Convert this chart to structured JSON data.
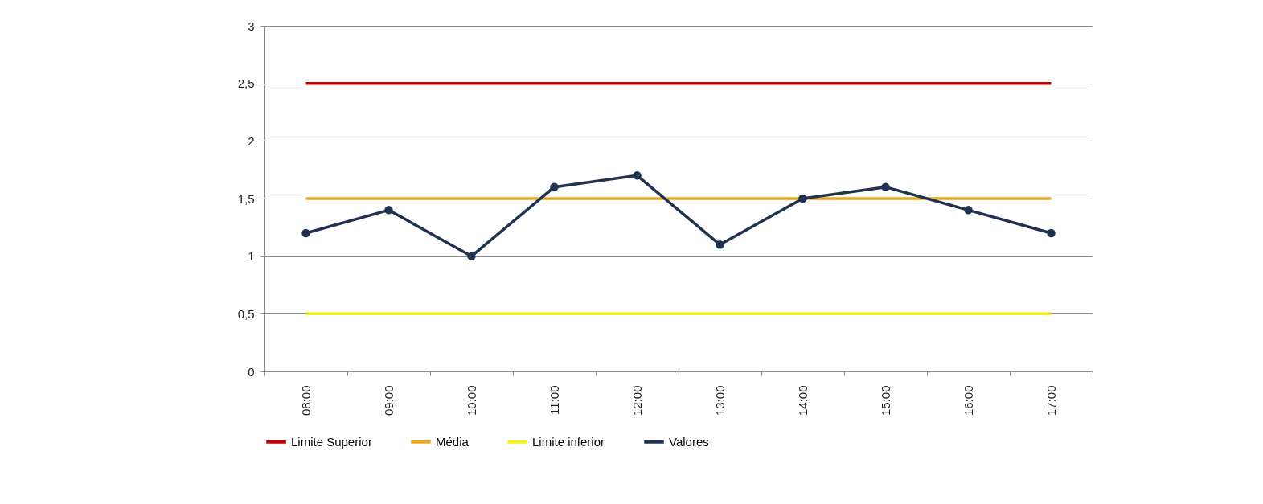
{
  "chart_data": {
    "type": "line",
    "categories": [
      "08:00",
      "09:00",
      "10:00",
      "11:00",
      "12:00",
      "13:00",
      "14:00",
      "15:00",
      "16:00",
      "17:00"
    ],
    "ylim": [
      0,
      3
    ],
    "yticks": [
      0,
      {
        "value": 0.5,
        "label": "0,5"
      },
      1,
      {
        "value": 1.5,
        "label": "1,5"
      },
      2,
      {
        "value": 2.5,
        "label": "2,5"
      },
      3
    ],
    "grid": "y",
    "legend": "bottom",
    "line_style": "solid",
    "series": [
      {
        "name": "Limite Superior",
        "color": "#c00000",
        "marker": "none",
        "values": [
          2.5,
          2.5,
          2.5,
          2.5,
          2.5,
          2.5,
          2.5,
          2.5,
          2.5,
          2.5
        ]
      },
      {
        "name": "Média",
        "color": "#e8a820",
        "marker": "none",
        "values": [
          1.5,
          1.5,
          1.5,
          1.5,
          1.5,
          1.5,
          1.5,
          1.5,
          1.5,
          1.5
        ]
      },
      {
        "name": "Limite inferior",
        "color": "#f2ef1c",
        "marker": "none",
        "values": [
          0.5,
          0.5,
          0.5,
          0.5,
          0.5,
          0.5,
          0.5,
          0.5,
          0.5,
          0.5
        ]
      },
      {
        "name": "Valores",
        "color": "#1f3251",
        "marker": "circle",
        "values": [
          1.2,
          1.4,
          1.0,
          1.6,
          1.7,
          1.1,
          1.5,
          1.6,
          1.4,
          1.2
        ]
      }
    ]
  }
}
